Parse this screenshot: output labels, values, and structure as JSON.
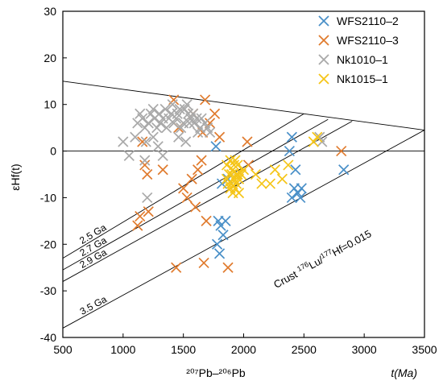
{
  "chart_data": {
    "type": "scatter",
    "xlabel_main": "²⁰⁷Pb–²⁰⁶Pb",
    "xlabel_unit": "t(Ma)",
    "ylabel": "εHf(t)",
    "xlim": [
      500,
      3500
    ],
    "ylim": [
      -40,
      30
    ],
    "xticks": [
      "500",
      "1000",
      "1500",
      "2000",
      "2500",
      "3000",
      "3500"
    ],
    "yticks": [
      "30",
      "20",
      "10",
      "0",
      "-10",
      "-20",
      "-30",
      "-40"
    ],
    "legend_position": "top-right",
    "marker": "x",
    "reference_lines": [
      {
        "name": "depleted-mantle",
        "from": [
          500,
          15
        ],
        "to": [
          3500,
          4.5
        ]
      },
      {
        "name": "zero",
        "from": [
          500,
          0
        ],
        "to": [
          3500,
          0
        ]
      },
      {
        "label": "2.5 Ga",
        "from": [
          500,
          -23
        ],
        "to": [
          2500,
          8.0
        ]
      },
      {
        "label": "2.7 Ga",
        "from": [
          500,
          -25.5
        ],
        "to": [
          2700,
          6.8
        ]
      },
      {
        "label": "2.9 Ga",
        "from": [
          500,
          -28
        ],
        "to": [
          2900,
          6.4
        ]
      },
      {
        "label": "3.5 Ga",
        "from": [
          500,
          -38
        ],
        "to": [
          3500,
          4.5
        ]
      }
    ],
    "annotation": {
      "prefix": "Crust ",
      "sup1": "176",
      "mid1": "Lu/",
      "sup2": "177",
      "mid2": "Hf=0.015"
    },
    "series": [
      {
        "name": "WFS2110–2",
        "color": "#4a90c8",
        "points": [
          [
            1770,
            1
          ],
          [
            1820,
            -7
          ],
          [
            1790,
            -15
          ],
          [
            1810,
            -16
          ],
          [
            1830,
            -18
          ],
          [
            1780,
            -20
          ],
          [
            1800,
            -22
          ],
          [
            1850,
            -15
          ],
          [
            1870,
            -6
          ],
          [
            2380,
            0
          ],
          [
            2400,
            3
          ],
          [
            2430,
            -4
          ],
          [
            2420,
            -8
          ],
          [
            2450,
            -9
          ],
          [
            2470,
            -10
          ],
          [
            2480,
            -8
          ],
          [
            2400,
            -10
          ],
          [
            2830,
            -4
          ]
        ]
      },
      {
        "name": "WFS2110–3",
        "color": "#e07b2e",
        "points": [
          [
            1160,
            2
          ],
          [
            1180,
            -3
          ],
          [
            1200,
            -5
          ],
          [
            1140,
            -14
          ],
          [
            1120,
            -16
          ],
          [
            1210,
            -13
          ],
          [
            1330,
            -4
          ],
          [
            1420,
            11
          ],
          [
            1460,
            5
          ],
          [
            1500,
            -8
          ],
          [
            1530,
            -10
          ],
          [
            1570,
            -6
          ],
          [
            1600,
            -12
          ],
          [
            1620,
            -4
          ],
          [
            1660,
            4
          ],
          [
            1680,
            11
          ],
          [
            1720,
            6
          ],
          [
            1760,
            8
          ],
          [
            1800,
            3
          ],
          [
            1440,
            -25
          ],
          [
            1670,
            -24
          ],
          [
            1870,
            -25
          ],
          [
            2030,
            2
          ],
          [
            2040,
            -3
          ],
          [
            2810,
            0
          ],
          [
            1690,
            -15
          ],
          [
            1650,
            -2
          ],
          [
            1580,
            8
          ]
        ]
      },
      {
        "name": "Nk1010–1",
        "color": "#a9a9a9",
        "points": [
          [
            1000,
            2
          ],
          [
            1050,
            -1
          ],
          [
            1100,
            3
          ],
          [
            1120,
            6
          ],
          [
            1140,
            8
          ],
          [
            1160,
            7
          ],
          [
            1180,
            5
          ],
          [
            1190,
            2
          ],
          [
            1210,
            6
          ],
          [
            1230,
            8
          ],
          [
            1250,
            9
          ],
          [
            1260,
            7
          ],
          [
            1280,
            5
          ],
          [
            1300,
            8
          ],
          [
            1310,
            6
          ],
          [
            1330,
            7
          ],
          [
            1350,
            9
          ],
          [
            1360,
            5
          ],
          [
            1380,
            7
          ],
          [
            1400,
            8
          ],
          [
            1410,
            10
          ],
          [
            1420,
            6
          ],
          [
            1440,
            7
          ],
          [
            1450,
            8
          ],
          [
            1470,
            9
          ],
          [
            1480,
            5
          ],
          [
            1500,
            6
          ],
          [
            1510,
            9
          ],
          [
            1530,
            10
          ],
          [
            1540,
            8
          ],
          [
            1550,
            6
          ],
          [
            1560,
            7
          ],
          [
            1580,
            8
          ],
          [
            1590,
            6
          ],
          [
            1610,
            7
          ],
          [
            1620,
            4
          ],
          [
            1640,
            5
          ],
          [
            1650,
            7
          ],
          [
            1680,
            6
          ],
          [
            1700,
            5
          ],
          [
            1720,
            4
          ],
          [
            1250,
            3
          ],
          [
            1290,
            1
          ],
          [
            1180,
            -2
          ],
          [
            1200,
            -10
          ],
          [
            1520,
            2
          ],
          [
            2630,
            3
          ],
          [
            2650,
            2
          ],
          [
            1330,
            -1
          ],
          [
            1460,
            3
          ]
        ]
      },
      {
        "name": "Nk1015–1",
        "color": "#f5c518",
        "points": [
          [
            1860,
            -3
          ],
          [
            1880,
            -5
          ],
          [
            1900,
            -7
          ],
          [
            1910,
            -4
          ],
          [
            1920,
            -6
          ],
          [
            1930,
            -8
          ],
          [
            1940,
            -5
          ],
          [
            1950,
            -3
          ],
          [
            1960,
            -6
          ],
          [
            1870,
            -7
          ],
          [
            1890,
            -2
          ],
          [
            1910,
            -9
          ],
          [
            1930,
            -2
          ],
          [
            1960,
            -9
          ],
          [
            1980,
            -5
          ],
          [
            2000,
            -4
          ],
          [
            1900,
            -5
          ],
          [
            1920,
            -3
          ],
          [
            1940,
            -7
          ],
          [
            1890,
            -8
          ],
          [
            1950,
            -5
          ],
          [
            1860,
            -6
          ],
          [
            2100,
            -5
          ],
          [
            2150,
            -7
          ],
          [
            2220,
            -7
          ],
          [
            2260,
            -4
          ],
          [
            2320,
            -6
          ],
          [
            2370,
            -3
          ],
          [
            2610,
            3
          ],
          [
            2580,
            2
          ]
        ]
      }
    ]
  }
}
